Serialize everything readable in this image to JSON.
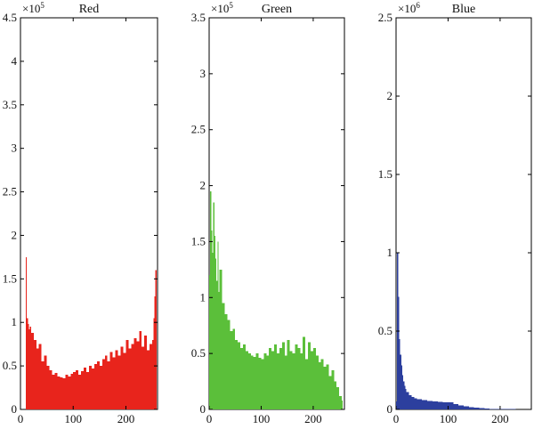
{
  "chart_data": [
    {
      "type": "bar",
      "title": "Red",
      "color": "#e8241c",
      "multiplier": {
        "base": "×10",
        "exponent": "5"
      },
      "xlim": [
        0,
        260
      ],
      "ylim": [
        0,
        4.5
      ],
      "xticks": [
        0,
        100,
        200
      ],
      "yticks": [
        0,
        0.5,
        1,
        1.5,
        2,
        2.5,
        3,
        3.5,
        4,
        4.5
      ],
      "ytick_labels": [
        "0",
        "0.5",
        "1",
        "1.5",
        "2",
        "2.5",
        "3",
        "3.5",
        "4",
        "4.5"
      ],
      "x": [
        10,
        12,
        14,
        16,
        18,
        20,
        25,
        30,
        35,
        40,
        45,
        50,
        55,
        60,
        65,
        70,
        75,
        80,
        85,
        90,
        95,
        100,
        105,
        110,
        115,
        120,
        125,
        130,
        135,
        140,
        145,
        150,
        155,
        160,
        165,
        170,
        175,
        180,
        185,
        190,
        195,
        200,
        205,
        210,
        215,
        220,
        225,
        230,
        235,
        240,
        245,
        250,
        252,
        254,
        256
      ],
      "values": [
        1.75,
        1.05,
        0.98,
        0.92,
        0.95,
        0.88,
        0.8,
        0.7,
        0.75,
        0.55,
        0.62,
        0.5,
        0.45,
        0.4,
        0.42,
        0.38,
        0.37,
        0.36,
        0.4,
        0.38,
        0.41,
        0.43,
        0.45,
        0.4,
        0.44,
        0.48,
        0.43,
        0.5,
        0.47,
        0.52,
        0.55,
        0.5,
        0.58,
        0.62,
        0.55,
        0.66,
        0.6,
        0.68,
        0.62,
        0.72,
        0.65,
        0.8,
        0.7,
        0.75,
        0.82,
        0.78,
        0.9,
        0.72,
        0.85,
        0.68,
        0.75,
        0.8,
        1.05,
        1.3,
        1.6
      ]
    },
    {
      "type": "bar",
      "title": "Green",
      "color": "#5bbf3a",
      "multiplier": {
        "base": "×10",
        "exponent": "5"
      },
      "xlim": [
        0,
        260
      ],
      "ylim": [
        0,
        3.5
      ],
      "xticks": [
        0,
        100,
        200
      ],
      "yticks": [
        0,
        0.5,
        1,
        1.5,
        2,
        2.5,
        3,
        3.5
      ],
      "ytick_labels": [
        "0",
        "0.5",
        "1",
        "1.5",
        "2",
        "2.5",
        "3",
        "3.5"
      ],
      "x": [
        0,
        2,
        4,
        6,
        8,
        10,
        12,
        14,
        16,
        18,
        20,
        25,
        30,
        35,
        40,
        45,
        50,
        55,
        60,
        65,
        70,
        75,
        80,
        85,
        90,
        95,
        100,
        105,
        110,
        115,
        120,
        125,
        130,
        135,
        140,
        145,
        150,
        155,
        160,
        165,
        170,
        175,
        180,
        185,
        190,
        195,
        200,
        205,
        210,
        215,
        220,
        225,
        230,
        235,
        240,
        245,
        250,
        255
      ],
      "values": [
        1.2,
        1.95,
        1.6,
        1.4,
        1.85,
        1.55,
        1.35,
        1.15,
        1.5,
        1.05,
        1.25,
        0.95,
        0.85,
        0.8,
        0.7,
        0.72,
        0.62,
        0.6,
        0.55,
        0.58,
        0.52,
        0.5,
        0.48,
        0.47,
        0.5,
        0.46,
        0.45,
        0.5,
        0.48,
        0.55,
        0.52,
        0.58,
        0.5,
        0.55,
        0.6,
        0.48,
        0.62,
        0.52,
        0.5,
        0.58,
        0.55,
        0.5,
        0.65,
        0.45,
        0.6,
        0.52,
        0.55,
        0.48,
        0.42,
        0.45,
        0.38,
        0.4,
        0.3,
        0.35,
        0.25,
        0.2,
        0.12,
        0.08
      ]
    },
    {
      "type": "bar",
      "title": "Blue",
      "color": "#2c3f9e",
      "multiplier": {
        "base": "×10",
        "exponent": "6"
      },
      "xlim": [
        0,
        260
      ],
      "ylim": [
        0,
        2.5
      ],
      "xticks": [
        0,
        100,
        200
      ],
      "yticks": [
        0,
        0.5,
        1,
        1.5,
        2,
        2.5
      ],
      "ytick_labels": [
        "0",
        "0.5",
        "1",
        "1.5",
        "2",
        "2.5"
      ],
      "x": [
        0,
        2,
        4,
        6,
        8,
        10,
        12,
        14,
        16,
        18,
        20,
        25,
        30,
        35,
        40,
        50,
        60,
        70,
        80,
        90,
        100,
        110,
        120,
        130,
        140,
        150,
        160,
        170,
        180,
        190,
        200,
        210,
        220,
        230,
        240,
        250
      ],
      "values": [
        0.05,
        1.0,
        0.72,
        0.45,
        0.35,
        0.28,
        0.22,
        0.18,
        0.15,
        0.13,
        0.11,
        0.09,
        0.08,
        0.07,
        0.065,
        0.06,
        0.055,
        0.05,
        0.048,
        0.045,
        0.045,
        0.035,
        0.025,
        0.02,
        0.015,
        0.012,
        0.008,
        0.006,
        0.004,
        0.003,
        0.002,
        0.004,
        0.002,
        0.001,
        0.001,
        0.001
      ]
    }
  ]
}
